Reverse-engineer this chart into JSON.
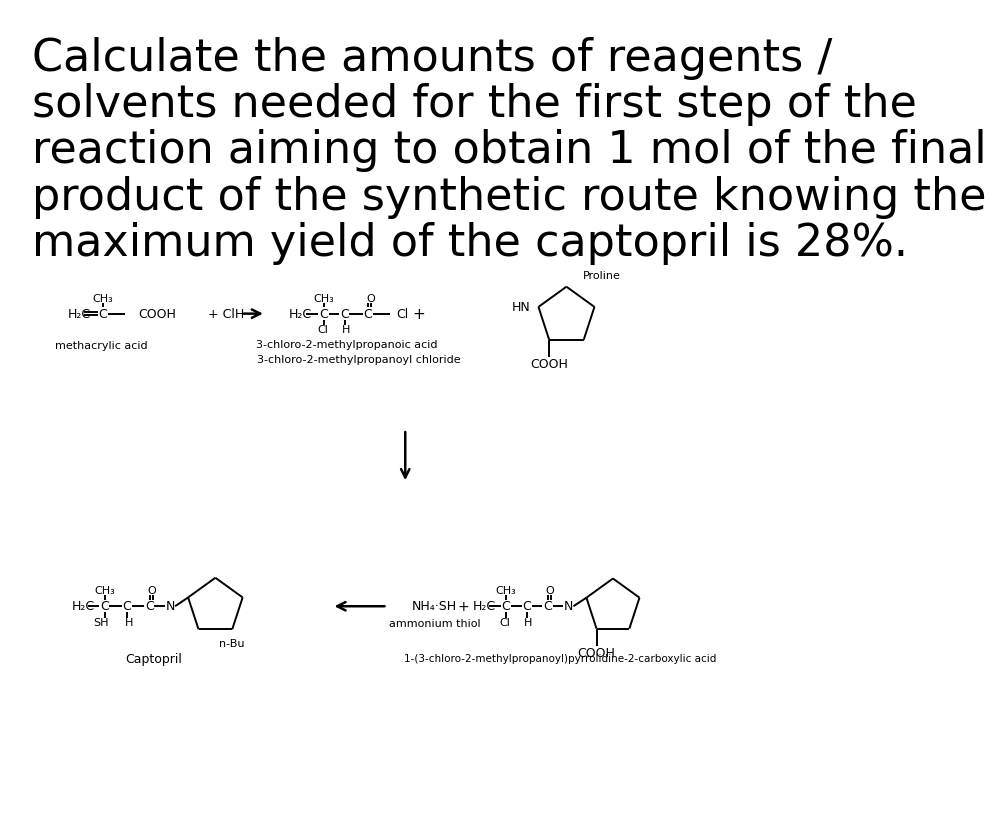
{
  "background_color": "#ffffff",
  "title_lines": [
    "Calculate the amounts of reagents /",
    "solvents needed for the first step of the",
    "reaction aiming to obtain 1 mol of the final",
    "product of the synthetic route knowing the",
    "maximum yield of the captopril is 28%."
  ],
  "title_fontsize": 32,
  "fig_width": 10.8,
  "fig_height": 10.63
}
